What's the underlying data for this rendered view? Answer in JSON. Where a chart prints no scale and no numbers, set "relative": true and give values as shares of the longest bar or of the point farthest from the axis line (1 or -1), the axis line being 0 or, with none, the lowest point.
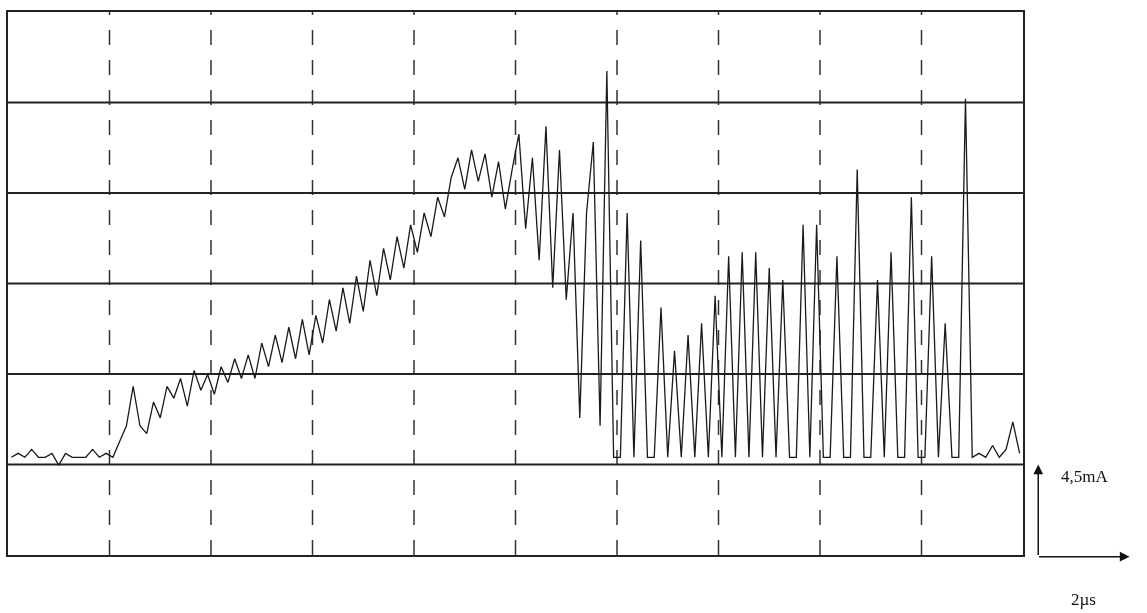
{
  "chart_data": {
    "type": "line",
    "relative": true,
    "grid": true,
    "marker": "none",
    "line_style": "solid",
    "categories": [
      null,
      null,
      null,
      null,
      null,
      null,
      null,
      null,
      null,
      null,
      null,
      null,
      null,
      null,
      null,
      null,
      null,
      null,
      null,
      null,
      null,
      null,
      null,
      null,
      null,
      null,
      null,
      null,
      null,
      null,
      null,
      null,
      null,
      null,
      null,
      null,
      null,
      null,
      null,
      null,
      null,
      null,
      null,
      null,
      null,
      null,
      null,
      null,
      null,
      null,
      null,
      null,
      null,
      null,
      null,
      null,
      null,
      null,
      null,
      null,
      null,
      null,
      null,
      null,
      null,
      null,
      null,
      null,
      null,
      null,
      null,
      null,
      null,
      null,
      null,
      null,
      null,
      null,
      null,
      null,
      null,
      null,
      null,
      null,
      null,
      null,
      null,
      null,
      null,
      null,
      null,
      null,
      null,
      null,
      null,
      null,
      null,
      null,
      null,
      null,
      null,
      null,
      null,
      null,
      null,
      null,
      null,
      null,
      null,
      null,
      null,
      null,
      null,
      null,
      null,
      null,
      null,
      null,
      null,
      null,
      null,
      null,
      null,
      null,
      null,
      null,
      null,
      null,
      null,
      null,
      null,
      null,
      null,
      null,
      null,
      null,
      null,
      null,
      null,
      null,
      null,
      null,
      null,
      null,
      null,
      null,
      null,
      null,
      null,
      null
    ],
    "series": [
      {
        "color": "#1a1a1a",
        "values": [
          0.02,
          0.03,
          0.02,
          0.04,
          0.02,
          0.02,
          0.03,
          0.0,
          0.03,
          0.02,
          0.02,
          0.02,
          0.04,
          0.02,
          0.03,
          0.02,
          0.06,
          0.1,
          0.2,
          0.1,
          0.08,
          0.16,
          0.12,
          0.2,
          0.17,
          0.22,
          0.15,
          0.24,
          0.19,
          0.23,
          0.18,
          0.25,
          0.21,
          0.27,
          0.22,
          0.28,
          0.22,
          0.31,
          0.25,
          0.33,
          0.26,
          0.35,
          0.27,
          0.37,
          0.28,
          0.38,
          0.31,
          0.42,
          0.34,
          0.45,
          0.36,
          0.48,
          0.39,
          0.52,
          0.43,
          0.55,
          0.47,
          0.58,
          0.5,
          0.61,
          0.54,
          0.64,
          0.58,
          0.68,
          0.63,
          0.73,
          0.78,
          0.7,
          0.8,
          0.72,
          0.79,
          0.68,
          0.77,
          0.65,
          0.75,
          0.84,
          0.6,
          0.78,
          0.52,
          0.86,
          0.45,
          0.8,
          0.42,
          0.64,
          0.12,
          0.64,
          0.82,
          0.1,
          1.0,
          0.02,
          0.02,
          0.64,
          0.02,
          0.57,
          0.02,
          0.02,
          0.4,
          0.02,
          0.29,
          0.02,
          0.33,
          0.02,
          0.36,
          0.02,
          0.43,
          0.02,
          0.53,
          0.02,
          0.54,
          0.02,
          0.54,
          0.02,
          0.5,
          0.02,
          0.47,
          0.02,
          0.02,
          0.61,
          0.02,
          0.61,
          0.02,
          0.02,
          0.53,
          0.02,
          0.02,
          0.75,
          0.02,
          0.02,
          0.47,
          0.02,
          0.54,
          0.02,
          0.02,
          0.68,
          0.02,
          0.02,
          0.53,
          0.02,
          0.36,
          0.02,
          0.02,
          0.93,
          0.02,
          0.03,
          0.02,
          0.05,
          0.02,
          0.04,
          0.11,
          0.03
        ]
      }
    ],
    "annotations": [
      "4,5mA",
      "2µs"
    ]
  }
}
